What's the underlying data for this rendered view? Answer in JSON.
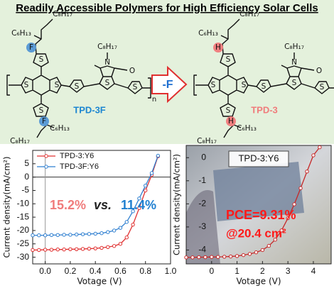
{
  "title": "Readily Accessible Polymers for High Efficiency Solar Cells",
  "arrow_label": "-F",
  "structures": [
    {
      "name": "TPD-3F",
      "name_color": "#1c86d1",
      "substituent_color": "#5b9bd5",
      "labels": [
        "C₈H₁₇",
        "C₆H₁₃",
        "F",
        "S",
        "S",
        "S",
        "S",
        "C₈H₁₇",
        "N",
        "O",
        "S",
        "S",
        "n",
        "S",
        "F",
        "C₆H₁₃",
        "C₈H₁₇"
      ]
    },
    {
      "name": "TPD-3",
      "name_color": "#f07b7b",
      "substituent_color": "#f08080",
      "labels": [
        "C₈H₁₇",
        "C₆H₁₃",
        "H",
        "S",
        "S",
        "S",
        "S",
        "C₈H₁₇",
        "N",
        "O",
        "S",
        "S",
        "n",
        "S",
        "H",
        "C₆H₁₃",
        "C₈H₁₇"
      ]
    }
  ],
  "chart_data": [
    {
      "type": "line",
      "xlabel": "Votage (V)",
      "ylabel": "Current density(mA/cm²)",
      "xlim": [
        -0.1,
        1.0
      ],
      "ylim": [
        -32.5,
        10
      ],
      "xticks": [
        {
          "value": 0,
          "label": "0.0"
        },
        0.2,
        0.4,
        0.6,
        0.8,
        {
          "value": 1,
          "label": "1.0"
        }
      ],
      "yticks": [
        -30,
        -25,
        -20,
        -15,
        -10,
        -5,
        0,
        5
      ],
      "zero_lines": true,
      "legend": "upper left",
      "x": [
        -0.1,
        -0.05,
        0,
        0.05,
        0.1,
        0.15,
        0.2,
        0.25,
        0.3,
        0.35,
        0.4,
        0.45,
        0.5,
        0.55,
        0.6,
        0.65,
        0.7,
        0.75,
        0.8,
        0.85,
        0.9
      ],
      "series": [
        {
          "name": "TPD-3:Y6",
          "color": "#e03030",
          "values": [
            -27.3,
            -27.3,
            -27.2,
            -27.2,
            -27.1,
            -27.1,
            -27.0,
            -27.0,
            -26.9,
            -26.8,
            -26.7,
            -26.5,
            -26.2,
            -25.8,
            -25.0,
            -22.6,
            -17.8,
            -11.6,
            -5.0,
            0.8,
            7.8
          ]
        },
        {
          "name": "TPD-3F:Y6",
          "color": "#2f7fd0",
          "values": [
            -21.8,
            -21.8,
            -21.8,
            -21.7,
            -21.7,
            -21.6,
            -21.6,
            -21.5,
            -21.4,
            -21.3,
            -21.2,
            -21.0,
            -20.6,
            -20.0,
            -19.0,
            -16.8,
            -12.8,
            -8.0,
            -3.2,
            1.5,
            8.0
          ]
        }
      ],
      "annotations": [
        {
          "text": "15.2%",
          "color": "#f07b7b"
        },
        {
          "text": "vs.",
          "color": "#222222"
        },
        {
          "text": "11.4%",
          "color": "#1f7fd0"
        }
      ]
    },
    {
      "type": "line",
      "xlabel": "Votage (V)",
      "ylabel": "Current density(mA/cm²)",
      "xlim": [
        -1,
        4.7
      ],
      "ylim": [
        -4.6,
        0.53
      ],
      "xticks": [
        0,
        1,
        2,
        3,
        4
      ],
      "yticks": [
        -4,
        -3,
        -2,
        -1,
        0
      ],
      "zero_lines": false,
      "legend": "upper center",
      "x": [
        -1,
        -0.75,
        -0.5,
        -0.25,
        0,
        0.25,
        0.5,
        0.75,
        1,
        1.25,
        1.5,
        1.75,
        2,
        2.25,
        2.5,
        2.75,
        3,
        3.25,
        3.5,
        3.75,
        4,
        4.25
      ],
      "series": [
        {
          "name": "TPD-3:Y6",
          "color": "#c62828",
          "values": [
            -4.32,
            -4.32,
            -4.31,
            -4.31,
            -4.3,
            -4.3,
            -4.29,
            -4.28,
            -4.26,
            -4.22,
            -4.17,
            -4.1,
            -4.0,
            -3.82,
            -3.55,
            -3.15,
            -2.62,
            -2.02,
            -1.32,
            -0.6,
            0.1,
            0.45
          ]
        }
      ],
      "annotations": [
        {
          "text": "PCE=9.31%",
          "color": "#ff1a1a"
        },
        {
          "text": "@20.4 cm²",
          "color": "#ff1a1a"
        }
      ]
    }
  ]
}
